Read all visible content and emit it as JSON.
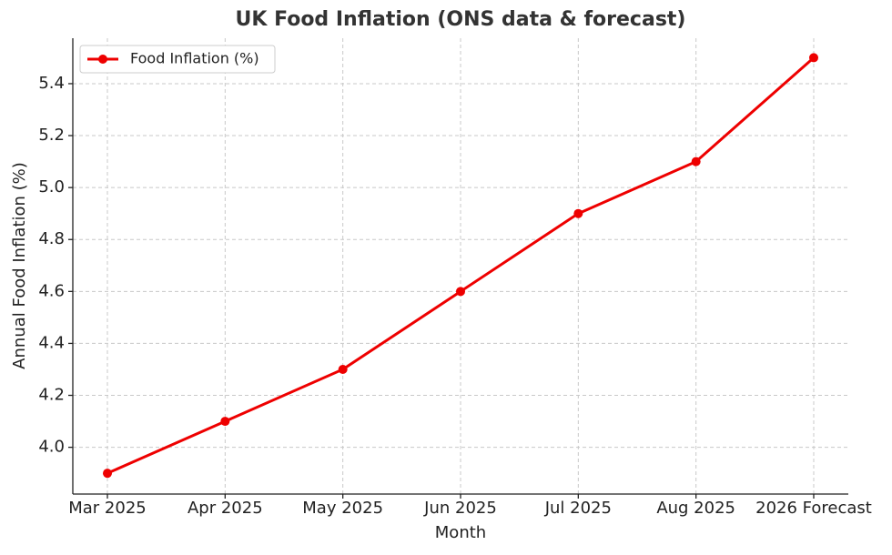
{
  "chart_data": {
    "type": "line",
    "title": "UK Food Inflation (ONS data & forecast)",
    "x_label": "Month",
    "y_label": "Annual Food Inflation (%)",
    "categories": [
      "Mar 2025",
      "Apr 2025",
      "May 2025",
      "Jun 2025",
      "Jul 2025",
      "Aug 2025",
      "2026 Forecast"
    ],
    "series": [
      {
        "name": "Food Inflation (%)",
        "color": "#ee0000",
        "values": [
          3.9,
          4.1,
          4.3,
          4.6,
          4.9,
          5.1,
          5.5
        ]
      }
    ],
    "ylim": [
      3.82,
      5.575
    ],
    "yticks": [
      {
        "value": 4,
        "label": "4.0"
      },
      4.2,
      4.4,
      4.6,
      4.8,
      {
        "value": 5,
        "label": "5.0"
      },
      5.2,
      5.4
    ],
    "grid": true,
    "legend": "upper left"
  }
}
